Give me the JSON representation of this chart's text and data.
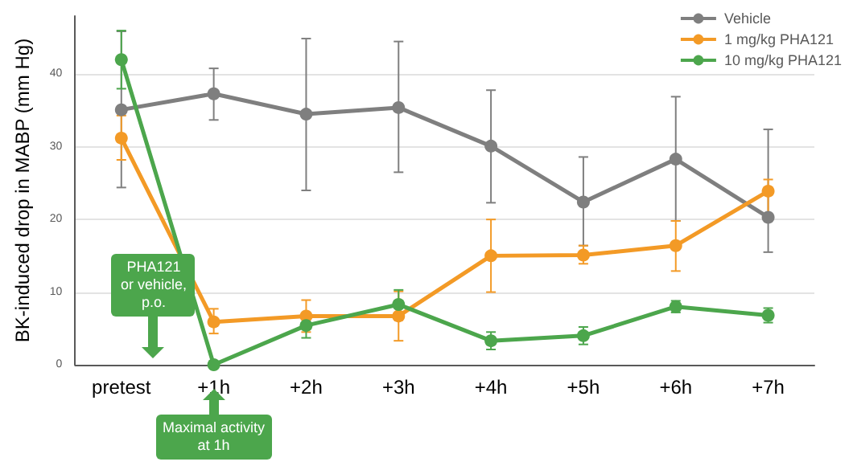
{
  "chart_data": {
    "type": "line",
    "ylabel": "BK-induced drop in MABP (mm Hg)",
    "categories": [
      "pretest",
      "+1h",
      "+2h",
      "+3h",
      "+4h",
      "+5h",
      "+6h",
      "+7h"
    ],
    "series": [
      {
        "name": "Vehicle",
        "color": "#7f7f7f",
        "values": [
          35.1,
          37.3,
          34.5,
          35.4,
          30.1,
          22.4,
          28.3,
          20.3
        ],
        "errors": [
          [
            24.4,
            45.9
          ],
          [
            33.7,
            40.8
          ],
          [
            24.0,
            44.9
          ],
          [
            26.5,
            44.5
          ],
          [
            22.3,
            37.8
          ],
          [
            16.4,
            28.6
          ],
          [
            19.8,
            36.9
          ],
          [
            15.5,
            32.4
          ]
        ]
      },
      {
        "name": "1 mg/kg PHA121",
        "color": "#f39a26",
        "values": [
          31.2,
          5.9,
          6.7,
          6.7,
          15.0,
          15.1,
          16.4,
          23.9
        ],
        "errors": [
          [
            28.2,
            34.3
          ],
          [
            4.3,
            7.7
          ],
          [
            4.5,
            8.9
          ],
          [
            3.3,
            10.1
          ],
          [
            10.0,
            20.0
          ],
          [
            13.9,
            16.4
          ],
          [
            12.9,
            19.8
          ],
          [
            20.5,
            25.5
          ]
        ]
      },
      {
        "name": "10 mg/kg PHA121",
        "color": "#4ca64c",
        "values": [
          42.0,
          0.0,
          5.4,
          8.3,
          3.3,
          4.0,
          8.0,
          6.8
        ],
        "errors": [
          [
            38.0,
            46.0
          ],
          null,
          [
            3.7,
            7.1
          ],
          [
            6.5,
            10.3
          ],
          [
            2.1,
            4.5
          ],
          [
            2.8,
            5.2
          ],
          [
            7.2,
            8.8
          ],
          [
            5.8,
            7.8
          ]
        ]
      }
    ],
    "ylim": [
      0,
      48
    ],
    "yticks": [
      0,
      10,
      20,
      30,
      40
    ],
    "grid": "y",
    "legend": "top right",
    "marker": "circle",
    "line_style": "solid",
    "annotations": [
      "PHA121 or vehicle, p.o.",
      "Maximal activity at 1h"
    ]
  }
}
